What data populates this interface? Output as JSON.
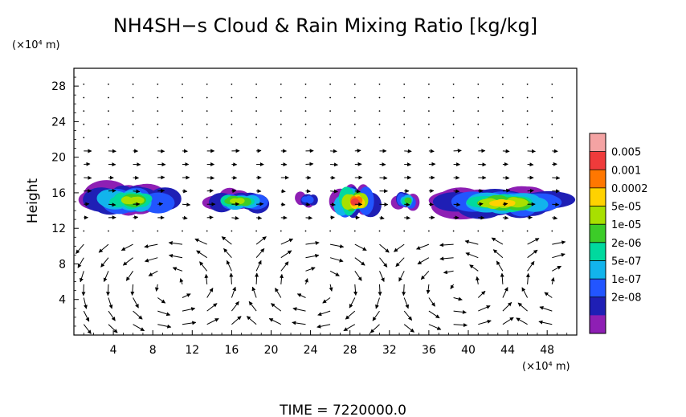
{
  "chart_data": {
    "type": "heatmap",
    "title": "NH4SH−s Cloud & Rain Mixing Ratio [kg/kg]",
    "ylabel": "Height",
    "y_unit": "(×10⁴ m)",
    "x_unit": "(×10⁴ m)",
    "footer": "TIME = 7220000.0",
    "xlim": [
      0,
      51
    ],
    "ylim": [
      0,
      30
    ],
    "x_ticks": [
      4,
      8,
      12,
      16,
      20,
      24,
      28,
      32,
      36,
      40,
      44,
      48
    ],
    "y_ticks": [
      4,
      8,
      12,
      16,
      20,
      24,
      28
    ],
    "grid": false,
    "colorbar": {
      "labels": [
        "0.005",
        "0.001",
        "0.0002",
        "5e-05",
        "1e-05",
        "2e-06",
        "5e-07",
        "1e-07",
        "2e-08"
      ],
      "colors": [
        "#f4a3a3",
        "#ef3b3b",
        "#ff7700",
        "#ffd200",
        "#a8e000",
        "#3ccc28",
        "#00d99e",
        "#12b4ec",
        "#2255ff",
        "#1f1fb5",
        "#8e1fb4"
      ]
    },
    "cloud_cells": [
      {
        "x_from": 0.5,
        "x_to": 11.5,
        "y_from": 13.3,
        "y_to": 17.0,
        "peak": "5e-05"
      },
      {
        "x_from": 13.0,
        "x_to": 20.5,
        "y_from": 13.8,
        "y_to": 16.3,
        "peak": "5e-05"
      },
      {
        "x_from": 22.5,
        "x_to": 25.0,
        "y_from": 14.4,
        "y_to": 16.1,
        "peak": "1e-07"
      },
      {
        "x_from": 26.0,
        "x_to": 31.0,
        "y_from": 12.8,
        "y_to": 17.2,
        "peak": "0.005"
      },
      {
        "x_from": 32.5,
        "x_to": 35.0,
        "y_from": 14.0,
        "y_to": 16.2,
        "peak": "1e-05"
      },
      {
        "x_from": 36.0,
        "x_to": 51.0,
        "y_from": 13.2,
        "y_to": 16.5,
        "peak": "0.0002"
      }
    ]
  }
}
